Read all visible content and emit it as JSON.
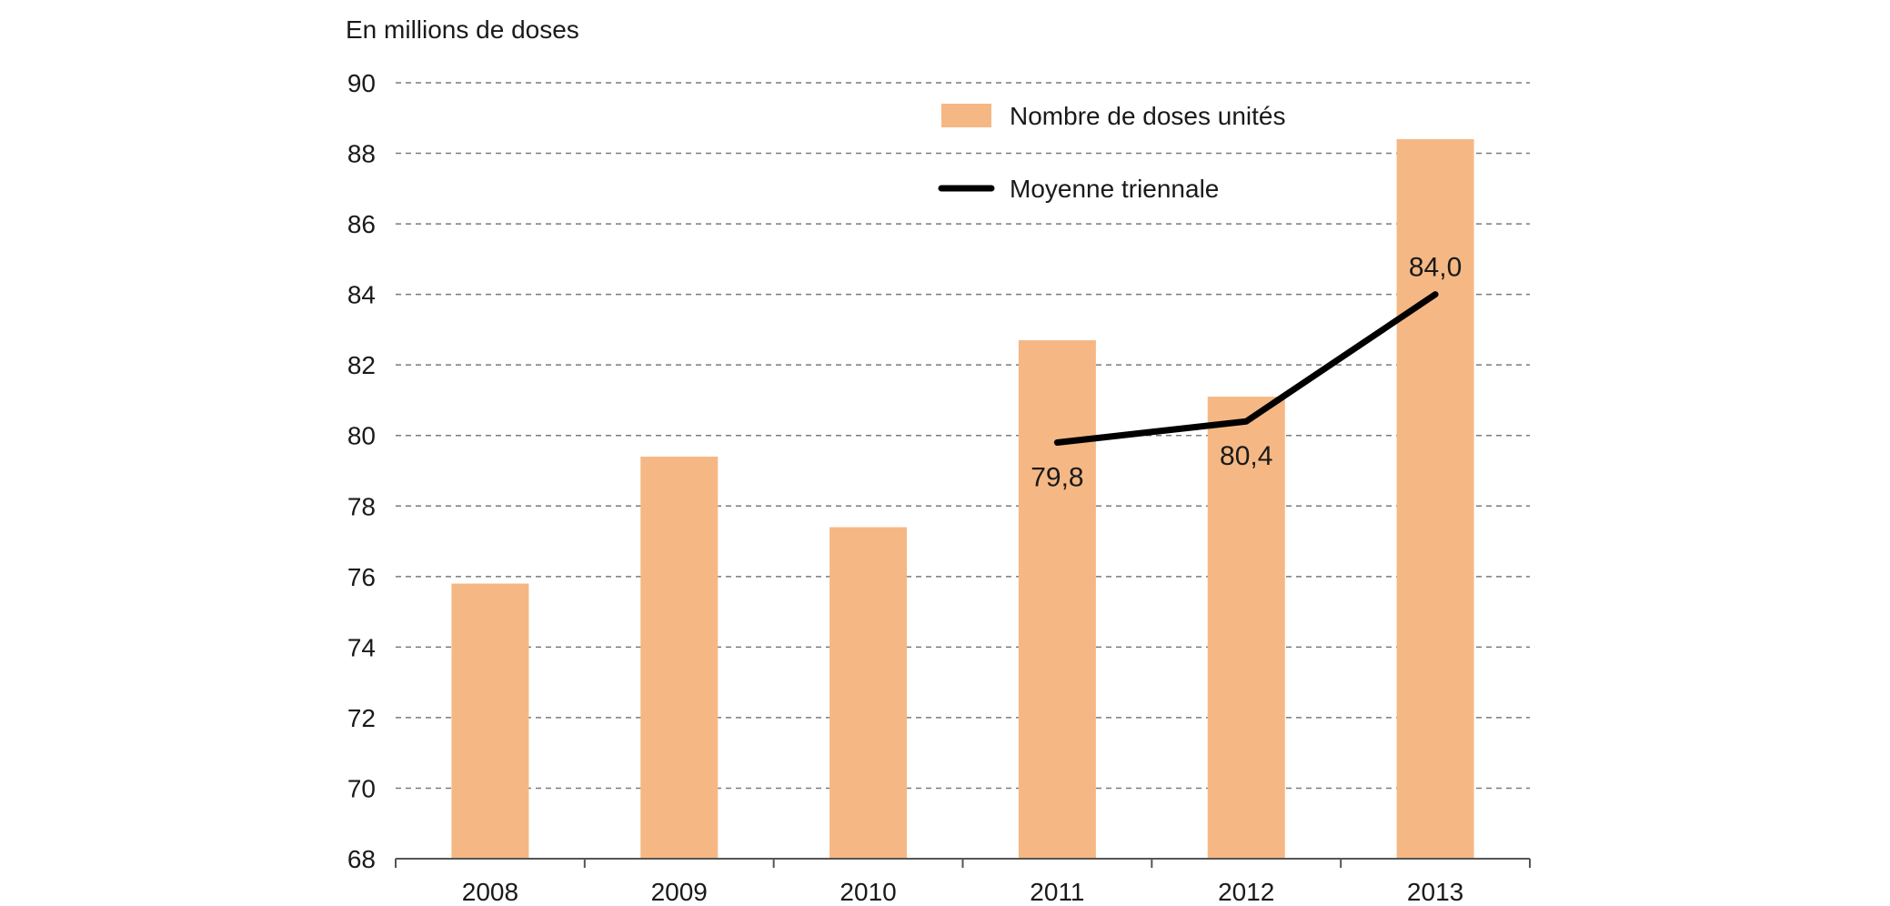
{
  "chart_data": {
    "type": "bar",
    "title": "",
    "ylabel": "En millions de doses",
    "xlabel": "",
    "categories": [
      "2008",
      "2009",
      "2010",
      "2011",
      "2012",
      "2013"
    ],
    "ylim": [
      68,
      90
    ],
    "yticks": [
      68,
      70,
      72,
      74,
      76,
      78,
      80,
      82,
      84,
      86,
      88,
      90
    ],
    "grid": true,
    "legend_position": "top-right",
    "series": [
      {
        "name": "Nombre de doses unités",
        "type": "bar",
        "color": "#f5b884",
        "values": [
          75.8,
          79.4,
          77.4,
          82.7,
          81.1,
          88.4
        ]
      },
      {
        "name": "Moyenne triennale",
        "type": "line",
        "color": "#000000",
        "x": [
          "2011",
          "2012",
          "2013"
        ],
        "values": [
          79.8,
          80.4,
          84.0
        ],
        "labels": [
          "79,8",
          "80,4",
          "84,0"
        ]
      }
    ]
  }
}
